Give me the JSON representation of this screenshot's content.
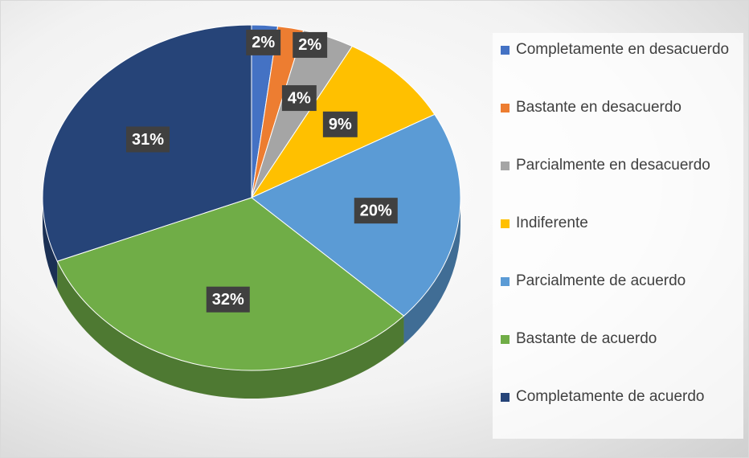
{
  "chart_data": {
    "type": "pie",
    "categories": [
      "Completamente en desacuerdo",
      "Bastante en desacuerdo",
      "Parcialmente en desacuerdo",
      "Indiferente",
      "Parcialmente de acuerdo",
      "Bastante de acuerdo",
      "Completamente de acuerdo"
    ],
    "values": [
      2,
      2,
      4,
      9,
      20,
      32,
      31
    ],
    "value_labels": [
      "2%",
      "2%",
      "4%",
      "9%",
      "20%",
      "32%",
      "31%"
    ],
    "colors": [
      "#4472c4",
      "#ed7d31",
      "#a5a5a5",
      "#ffc000",
      "#5b9bd5",
      "#70ad47",
      "#264478"
    ],
    "legend": "right"
  }
}
